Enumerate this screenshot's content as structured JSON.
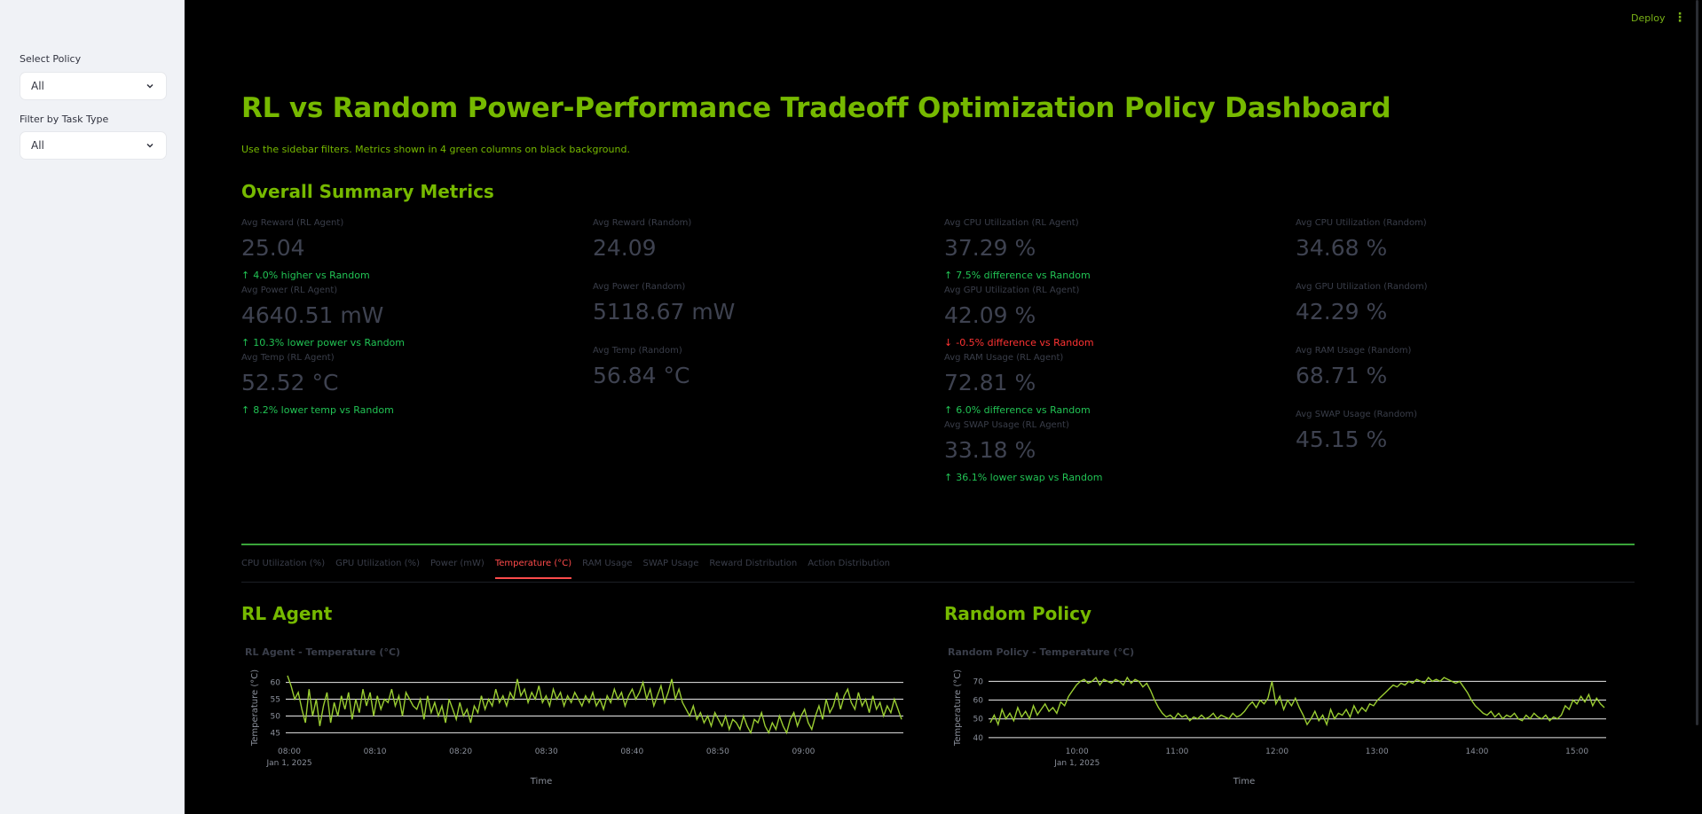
{
  "sidebar": {
    "policy_label": "Select Policy",
    "policy_value": "All",
    "task_label": "Filter by Task Type",
    "task_value": "All"
  },
  "header": {
    "deploy": "Deploy"
  },
  "main": {
    "title": "RL vs Random Power-Performance Tradeoff Optimization Policy Dashboard",
    "subtitle": "Use the sidebar filters. Metrics shown in 4 green columns on black background.",
    "summary_heading": "Overall Summary Metrics"
  },
  "metrics": {
    "col1": [
      {
        "label": "Avg Reward (RL Agent)",
        "value": "25.04",
        "delta": "4.0% higher vs Random"
      },
      {
        "label": "Avg Power (RL Agent)",
        "value": "4640.51 mW",
        "delta": "10.3% lower power vs Random"
      },
      {
        "label": "Avg Temp (RL Agent)",
        "value": "52.52 °C",
        "delta": "8.2% lower temp vs Random"
      }
    ],
    "col2": [
      {
        "label": "Avg Reward (Random)",
        "value": "24.09"
      },
      {
        "label": "Avg Power (Random)",
        "value": "5118.67 mW"
      },
      {
        "label": "Avg Temp (Random)",
        "value": "56.84 °C"
      }
    ],
    "col3": [
      {
        "label": "Avg CPU Utilization (RL Agent)",
        "value": "37.29 %",
        "delta": "7.5% difference vs Random"
      },
      {
        "label": "Avg GPU Utilization (RL Agent)",
        "value": "42.09 %",
        "delta": "-0.5% difference vs Random"
      },
      {
        "label": "Avg RAM Usage (RL Agent)",
        "value": "72.81 %",
        "delta": "6.0% difference vs Random"
      },
      {
        "label": "Avg SWAP Usage (RL Agent)",
        "value": "33.18 %",
        "delta": "36.1% lower swap vs Random"
      }
    ],
    "col4": [
      {
        "label": "Avg CPU Utilization (Random)",
        "value": "34.68 %"
      },
      {
        "label": "Avg GPU Utilization (Random)",
        "value": "42.29 %"
      },
      {
        "label": "Avg RAM Usage (Random)",
        "value": "68.71 %"
      },
      {
        "label": "Avg SWAP Usage (Random)",
        "value": "45.15 %"
      }
    ]
  },
  "tabs": [
    "CPU Utilization (%)",
    "GPU Utilization (%)",
    "Power (mW)",
    "Temperature (°C)",
    "RAM Usage",
    "SWAP Usage",
    "Reward Distribution",
    "Action Distribution"
  ],
  "active_tab": "Temperature (°C)",
  "panels": {
    "rl_heading": "RL Agent",
    "random_heading": "Random Policy"
  },
  "colors": {
    "accent": "#76b900",
    "line": "#9acd32",
    "up": "#21c354",
    "down": "#ff3333",
    "active_tab": "#ff4b4b"
  },
  "chart_data": [
    {
      "type": "line",
      "title": "RL Agent - Temperature (°C)",
      "xlabel": "Time",
      "ylabel": "Temperature (°C)",
      "x_range": [
        "2025-01-01 08:00",
        "2025-01-01 09:30"
      ],
      "x_ticks": [
        "08:00",
        "08:10",
        "08:20",
        "08:30",
        "08:40",
        "08:50",
        "09:00"
      ],
      "x_date_label": "Jan 1, 2025",
      "y_ticks": [
        45,
        50,
        55,
        60
      ],
      "ylim": [
        43,
        62
      ],
      "grid": true,
      "series": [
        {
          "values": [
            62,
            59,
            55,
            57,
            52,
            48,
            58,
            50,
            55,
            47,
            53,
            57,
            48,
            54,
            50,
            56,
            52,
            57,
            49,
            55,
            51,
            58,
            53,
            57,
            50,
            56,
            52,
            55,
            54,
            58,
            53,
            56,
            50,
            57,
            55,
            53,
            52,
            55,
            49,
            56,
            51,
            54,
            50,
            53,
            48,
            55,
            52,
            49,
            54,
            50,
            52,
            48,
            53,
            51,
            56,
            52,
            55,
            53,
            58,
            54,
            56,
            53,
            57,
            55,
            61,
            56,
            58,
            54,
            57,
            55,
            59,
            54,
            56,
            53,
            58,
            55,
            57,
            53,
            56,
            54,
            57,
            55,
            53,
            56,
            54,
            57,
            53,
            55,
            52,
            56,
            54,
            58,
            55,
            57,
            53,
            56,
            58,
            55,
            57,
            60,
            55,
            58,
            53,
            56,
            59,
            54,
            57,
            61,
            55,
            58,
            54,
            52,
            50,
            53,
            49,
            51,
            48,
            50,
            47,
            51,
            49,
            47,
            50,
            46,
            49,
            48,
            46,
            50,
            47,
            45,
            49,
            48,
            51,
            47,
            45,
            48,
            46,
            50,
            47,
            45,
            49,
            51,
            47,
            50,
            52,
            48,
            46,
            50,
            53,
            49,
            55,
            51,
            53,
            57,
            52,
            56,
            58,
            54,
            52,
            57,
            53,
            55,
            51,
            56,
            52,
            54,
            50,
            53,
            51,
            55,
            52,
            49
          ]
        }
      ]
    },
    {
      "type": "line",
      "title": "Random Policy - Temperature (°C)",
      "xlabel": "Time",
      "ylabel": "Temperature (°C)",
      "x_range": [
        "2025-01-01 09:30",
        "2025-01-01 15:55"
      ],
      "x_ticks": [
        "10:00",
        "11:00",
        "12:00",
        "13:00",
        "14:00",
        "15:00"
      ],
      "x_date_label": "Jan 1, 2025",
      "y_ticks": [
        40,
        50,
        60,
        70
      ],
      "ylim": [
        39,
        73
      ],
      "grid": true,
      "series": [
        {
          "values": [
            48,
            52,
            47,
            55,
            50,
            53,
            49,
            56,
            51,
            54,
            50,
            57,
            52,
            55,
            58,
            54,
            56,
            53,
            59,
            57,
            62,
            65,
            68,
            70,
            71,
            69,
            70,
            72,
            68,
            71,
            70,
            69,
            71,
            70,
            68,
            72,
            69,
            71,
            70,
            67,
            69,
            65,
            60,
            56,
            53,
            51,
            52,
            50,
            53,
            51,
            52,
            49,
            51,
            50,
            52,
            50,
            51,
            53,
            50,
            52,
            51,
            50,
            53,
            51,
            52,
            54,
            57,
            59,
            56,
            60,
            58,
            61,
            70,
            58,
            62,
            55,
            60,
            57,
            61,
            56,
            52,
            47,
            50,
            54,
            49,
            52,
            47,
            55,
            50,
            53,
            52,
            55,
            51,
            57,
            53,
            56,
            54,
            58,
            57,
            60,
            62,
            64,
            66,
            68,
            67,
            69,
            68,
            70,
            69,
            71,
            70,
            69,
            72,
            70,
            71,
            70,
            72,
            71,
            70,
            69,
            70,
            67,
            64,
            60,
            57,
            55,
            53,
            52,
            54,
            51,
            53,
            50,
            52,
            51,
            53,
            50,
            49,
            52,
            50,
            53,
            51,
            50,
            52,
            49,
            51,
            50,
            52,
            57,
            55,
            60,
            58,
            62,
            59,
            63,
            57,
            61,
            58,
            56
          ]
        }
      ]
    }
  ]
}
